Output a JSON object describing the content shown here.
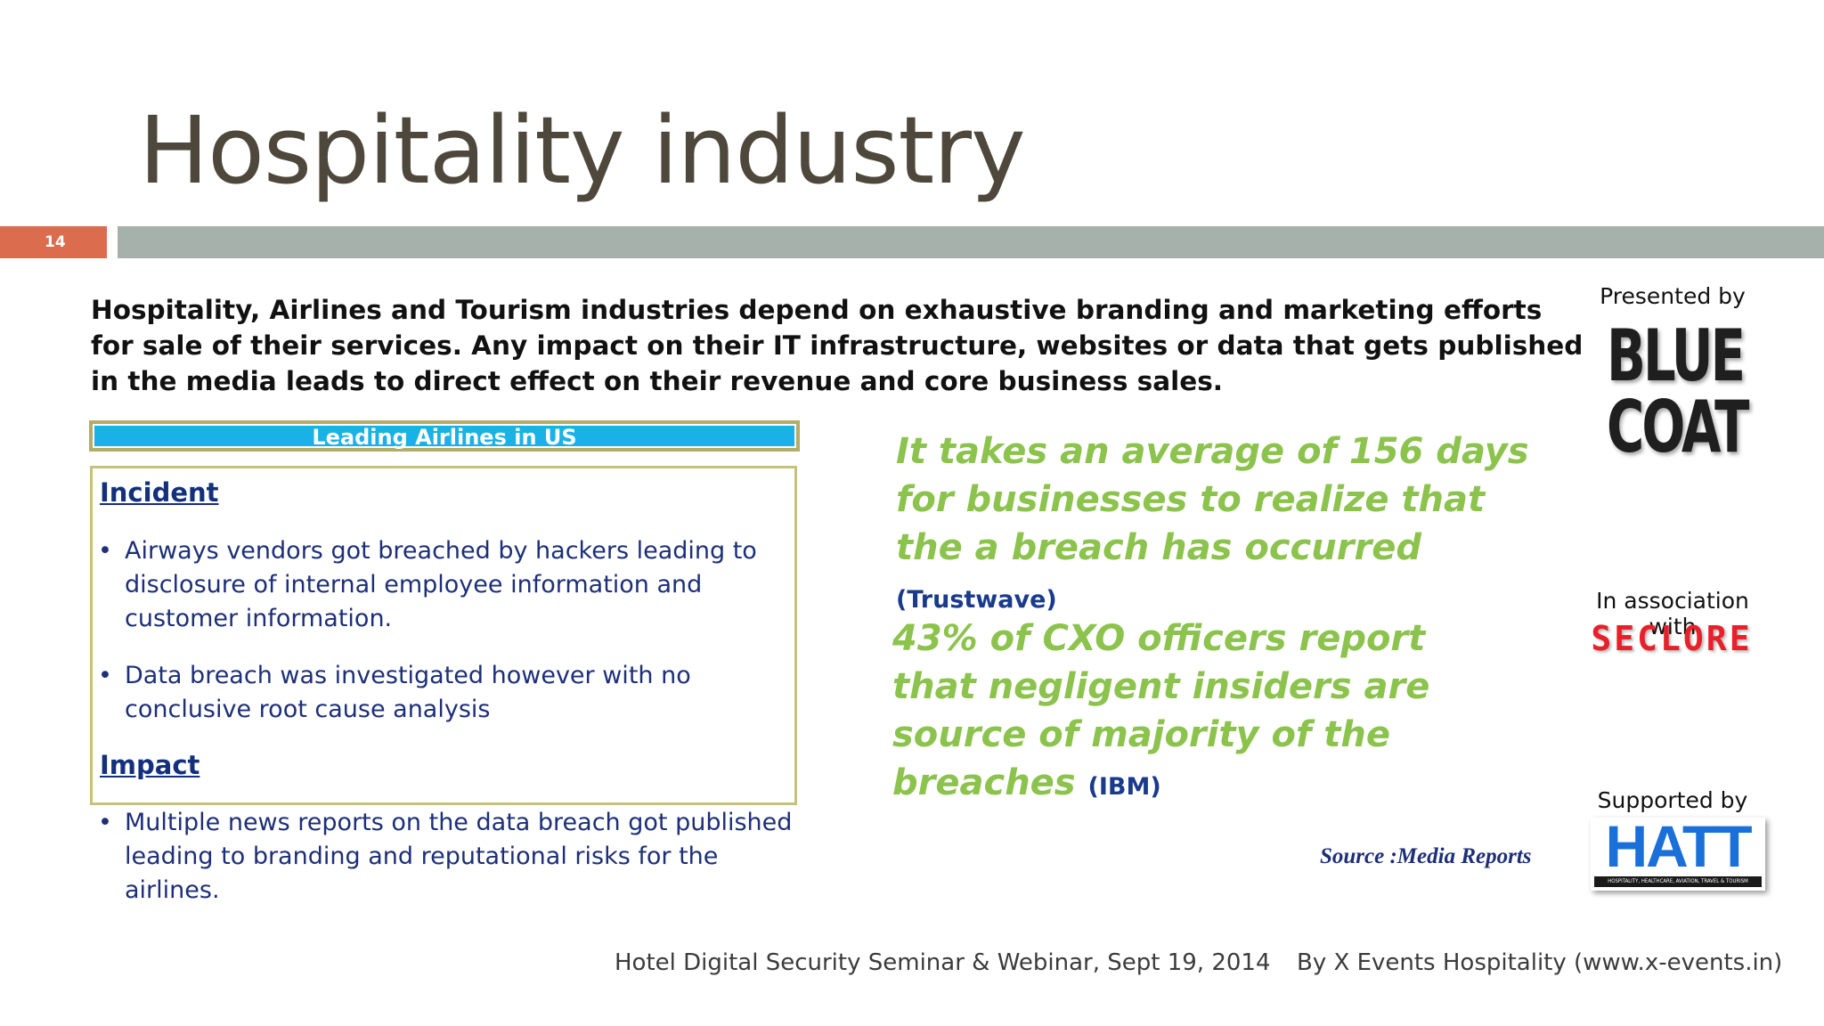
{
  "slide": {
    "title": "Hospitality industry",
    "number": "14",
    "intro": "Hospitality,  Airlines and Tourism industries depend on exhaustive branding and marketing efforts for sale of their services. Any impact on their IT infrastructure, websites or data that gets published in the media leads to direct effect on their revenue and core business sales."
  },
  "box": {
    "header": "Leading Airlines in US",
    "incident_heading": "Incident",
    "incident_bullets": [
      "Airways vendors got breached by hackers leading to disclosure of internal employee information and customer information.",
      "Data breach was investigated however with no conclusive root cause analysis"
    ],
    "impact_heading": "Impact",
    "impact_bullets": [
      "Multiple news reports on the data breach got published leading to branding and reputational risks for the airlines."
    ],
    "bullet_char": "•"
  },
  "stats": [
    {
      "text": "It takes an average of 156 days for businesses to realize that the a breach has occurred",
      "source": "(Trustwave)"
    },
    {
      "text": "43% of CXO officers report that negligent insiders are source of majority of the breaches",
      "source": "(IBM)"
    }
  ],
  "source_note": "Source :Media Reports",
  "sponsors": {
    "presented_label": "Presented by",
    "presented_logo": "BLUE COAT",
    "association_label": "In association with",
    "association_logo": "SECLORE",
    "supported_label": "Supported by",
    "supported_logo": "HATT",
    "supported_tagline": "HOSPITALITY, HEALTHCARE, AVIATION, TRAVEL & TOURISM"
  },
  "footer": {
    "event": "Hotel Digital Security Seminar & Webinar, Sept 19, 2014",
    "organizer": "By X Events Hospitality (www.x-events.in)"
  },
  "colors": {
    "title": "#4e473b",
    "accent_orange": "#dc6c4e",
    "rule_gray": "#a5b1aa",
    "stat_green": "#8cc34d",
    "navy": "#1d2f78",
    "header_blue": "#18b2e6"
  }
}
